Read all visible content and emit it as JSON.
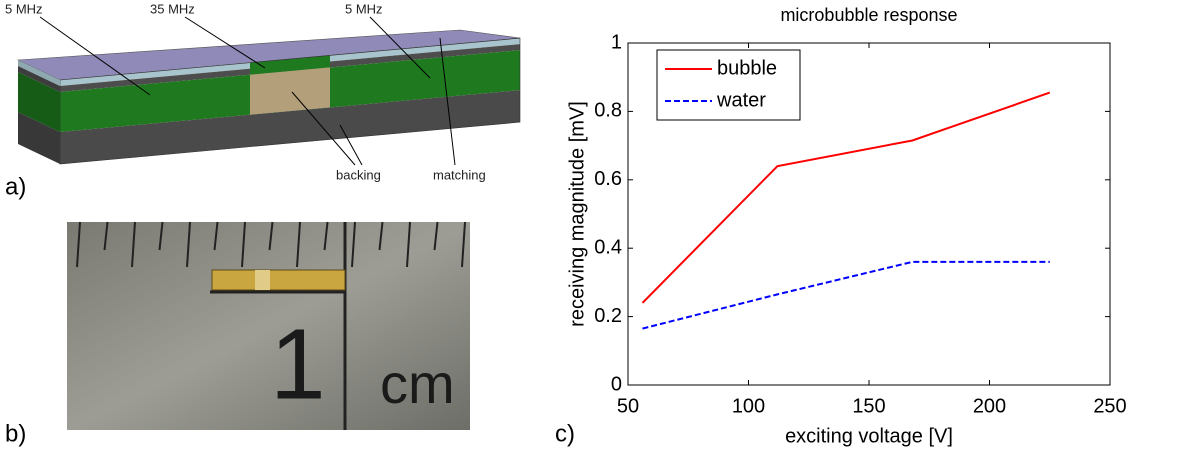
{
  "figure": {
    "panel_labels": [
      "a)",
      "b)",
      "c)"
    ],
    "diagram_labels": [
      "5 MHz",
      "35 MHz",
      "5 MHz",
      "backing",
      "matching"
    ],
    "photo_labels": [
      "1",
      "cm"
    ]
  },
  "chart_data": {
    "type": "line",
    "title": "microbubble response",
    "x_label": "exciting voltage [V]",
    "y_label": "receiving magnitude [mV]",
    "x": [
      56,
      112,
      168,
      225
    ],
    "series": [
      {
        "name": "bubble",
        "color": "#ff0000",
        "dash": "solid",
        "values": [
          0.24,
          0.64,
          0.715,
          0.855
        ]
      },
      {
        "name": "water",
        "color": "#0000ff",
        "dash": "dashed",
        "values": [
          0.165,
          0.265,
          0.36,
          0.36
        ]
      }
    ],
    "xlim": [
      50,
      250
    ],
    "ylim": [
      0,
      1
    ],
    "xticks": [
      50,
      100,
      150,
      200,
      250
    ],
    "yticks": [
      0,
      0.2,
      0.4,
      0.6,
      0.8,
      1
    ],
    "legend": "upper-left"
  }
}
